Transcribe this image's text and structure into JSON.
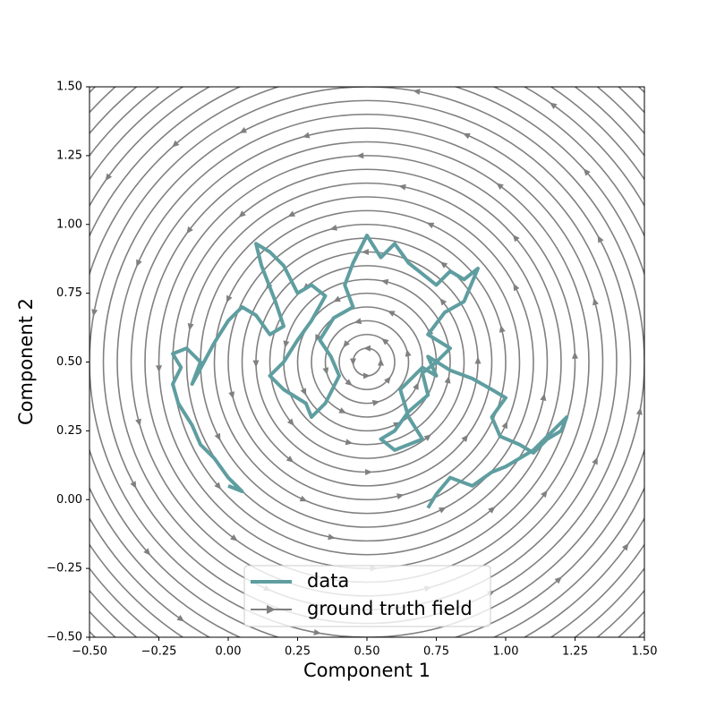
{
  "chart_data": {
    "type": "streamplot",
    "x_label": "Component 1",
    "y_label": "Component 2",
    "xlim": [
      -0.5,
      1.5
    ],
    "ylim": [
      -0.5,
      1.5
    ],
    "xticks": [
      {
        "value": -0.5,
        "label": "−0.50"
      },
      {
        "value": -0.25,
        "label": "−0.25"
      },
      {
        "value": 0,
        "label": "0.00"
      },
      {
        "value": 0.25,
        "label": "0.25"
      },
      {
        "value": 0.5,
        "label": "0.50"
      },
      {
        "value": 0.75,
        "label": "0.75"
      },
      {
        "value": 1,
        "label": "1.00"
      },
      {
        "value": 1.25,
        "label": "1.25"
      },
      {
        "value": 1.5,
        "label": "1.50"
      }
    ],
    "yticks": [
      {
        "value": -0.5,
        "label": "−0.50"
      },
      {
        "value": -0.25,
        "label": "−0.25"
      },
      {
        "value": 0,
        "label": "0.00"
      },
      {
        "value": 0.25,
        "label": "0.25"
      },
      {
        "value": 0.5,
        "label": "0.50"
      },
      {
        "value": 0.75,
        "label": "0.75"
      },
      {
        "value": 1,
        "label": "1.00"
      },
      {
        "value": 1.25,
        "label": "1.25"
      },
      {
        "value": 1.5,
        "label": "1.50"
      }
    ],
    "legend": "lower center",
    "field": {
      "name": "ground truth field",
      "color": "#808080",
      "center": [
        0.5,
        0.5
      ],
      "radii": [
        0.05,
        0.1,
        0.15,
        0.2,
        0.25,
        0.3,
        0.35,
        0.4,
        0.45,
        0.5,
        0.55,
        0.6,
        0.65,
        0.7,
        0.75,
        0.8,
        0.85,
        0.9,
        0.95,
        1.0,
        1.05,
        1.1,
        1.15,
        1.2,
        1.25,
        1.3,
        1.35,
        1.4
      ]
    },
    "series": [
      {
        "name": "data",
        "color": "#5f9ea0",
        "x": [
          0.0,
          0.05,
          0.0,
          -0.05,
          -0.1,
          -0.13,
          -0.18,
          -0.2,
          -0.17,
          -0.2,
          -0.15,
          -0.1,
          -0.13,
          -0.05,
          0.0,
          0.05,
          0.1,
          0.15,
          0.2,
          0.17,
          0.12,
          0.1,
          0.15,
          0.2,
          0.25,
          0.3,
          0.35,
          0.3,
          0.25,
          0.2,
          0.15,
          0.2,
          0.28,
          0.3,
          0.35,
          0.4,
          0.37,
          0.33,
          0.38,
          0.45,
          0.42,
          0.45,
          0.5,
          0.55,
          0.6,
          0.65,
          0.7,
          0.75,
          0.8,
          0.85,
          0.9,
          0.85,
          0.78,
          0.72,
          0.8,
          0.75,
          0.7,
          0.72,
          0.65,
          0.6,
          0.55,
          0.6,
          0.7,
          0.65,
          0.62,
          0.7,
          0.75,
          0.72,
          0.8,
          0.88,
          0.95,
          1.0,
          0.95,
          0.98,
          1.05,
          1.1,
          1.15,
          1.2,
          1.22,
          1.1,
          1.0,
          0.95,
          0.88,
          0.8,
          0.75,
          0.72
        ],
        "y": [
          0.05,
          0.03,
          0.08,
          0.15,
          0.2,
          0.27,
          0.35,
          0.42,
          0.48,
          0.53,
          0.55,
          0.5,
          0.42,
          0.57,
          0.65,
          0.7,
          0.67,
          0.6,
          0.63,
          0.72,
          0.85,
          0.93,
          0.9,
          0.85,
          0.75,
          0.78,
          0.74,
          0.65,
          0.58,
          0.5,
          0.45,
          0.4,
          0.35,
          0.3,
          0.35,
          0.45,
          0.52,
          0.58,
          0.66,
          0.7,
          0.78,
          0.86,
          0.96,
          0.88,
          0.93,
          0.86,
          0.82,
          0.78,
          0.83,
          0.8,
          0.84,
          0.72,
          0.68,
          0.6,
          0.55,
          0.5,
          0.46,
          0.38,
          0.32,
          0.25,
          0.22,
          0.18,
          0.22,
          0.3,
          0.4,
          0.48,
          0.45,
          0.52,
          0.47,
          0.44,
          0.4,
          0.37,
          0.3,
          0.23,
          0.2,
          0.17,
          0.22,
          0.25,
          0.3,
          0.18,
          0.12,
          0.1,
          0.05,
          0.08,
          0.02,
          -0.03
        ]
      }
    ]
  }
}
